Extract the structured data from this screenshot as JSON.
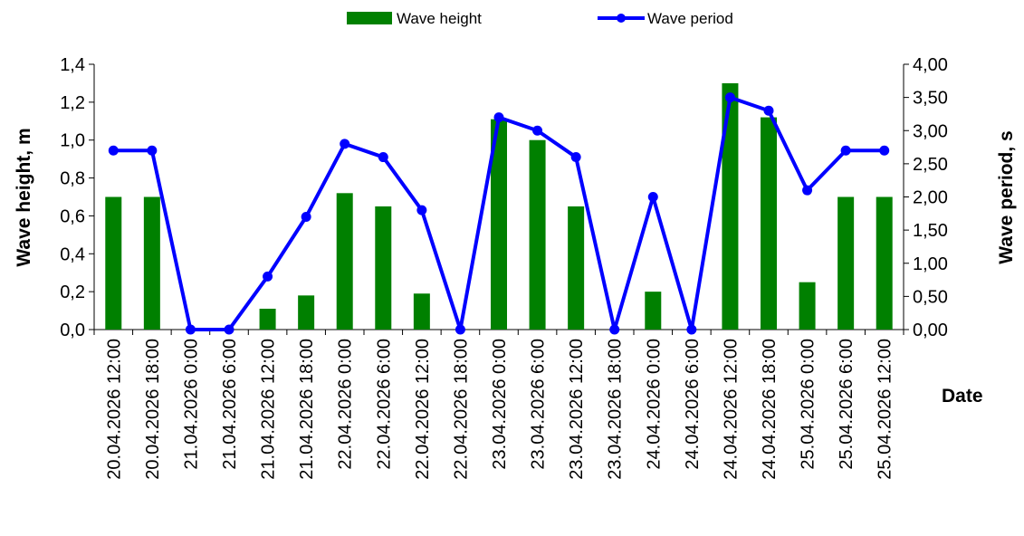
{
  "chart_data": {
    "type": "bar",
    "xlabel": "Date",
    "ylabel": "Wave height, m",
    "y2label": "Wave period, s",
    "ylim": [
      0,
      1.4
    ],
    "y2lim": [
      0,
      4.0
    ],
    "y_ticks": [
      "0,0",
      "0,2",
      "0,4",
      "0,6",
      "0,8",
      "1,0",
      "1,2",
      "1,4"
    ],
    "y2_ticks": [
      "0,00",
      "0,50",
      "1,00",
      "1,50",
      "2,00",
      "2,50",
      "3,00",
      "3,50",
      "4,00"
    ],
    "legend_position": "top-center",
    "categories": [
      "20.04.2026 12:00",
      "20.04.2026 18:00",
      "21.04.2026 0:00",
      "21.04.2026 6:00",
      "21.04.2026 12:00",
      "21.04.2026 18:00",
      "22.04.2026 0:00",
      "22.04.2026 6:00",
      "22.04.2026 12:00",
      "22.04.2026 18:00",
      "23.04.2026 0:00",
      "23.04.2026 6:00",
      "23.04.2026 12:00",
      "23.04.2026 18:00",
      "24.04.2026 0:00",
      "24.04.2026 6:00",
      "24.04.2026 12:00",
      "24.04.2026 18:00",
      "25.04.2026 0:00",
      "25.04.2026 6:00",
      "25.04.2026 12:00"
    ],
    "series": [
      {
        "name": "Wave height",
        "type": "bar",
        "axis": "left",
        "color": "#008000",
        "values": [
          0.7,
          0.7,
          0,
          0,
          0.11,
          0.18,
          0.72,
          0.65,
          0.19,
          0,
          1.11,
          1.0,
          0.65,
          0,
          0.2,
          0,
          1.3,
          1.12,
          0.25,
          0.7,
          0.7
        ]
      },
      {
        "name": "Wave period",
        "type": "line",
        "axis": "right",
        "color": "#0000FF",
        "values": [
          2.7,
          2.7,
          0,
          0,
          0.8,
          1.7,
          2.8,
          2.6,
          1.8,
          0,
          3.2,
          3.0,
          2.6,
          0,
          2.0,
          0,
          3.5,
          3.3,
          2.1,
          2.7,
          2.7
        ]
      }
    ]
  }
}
